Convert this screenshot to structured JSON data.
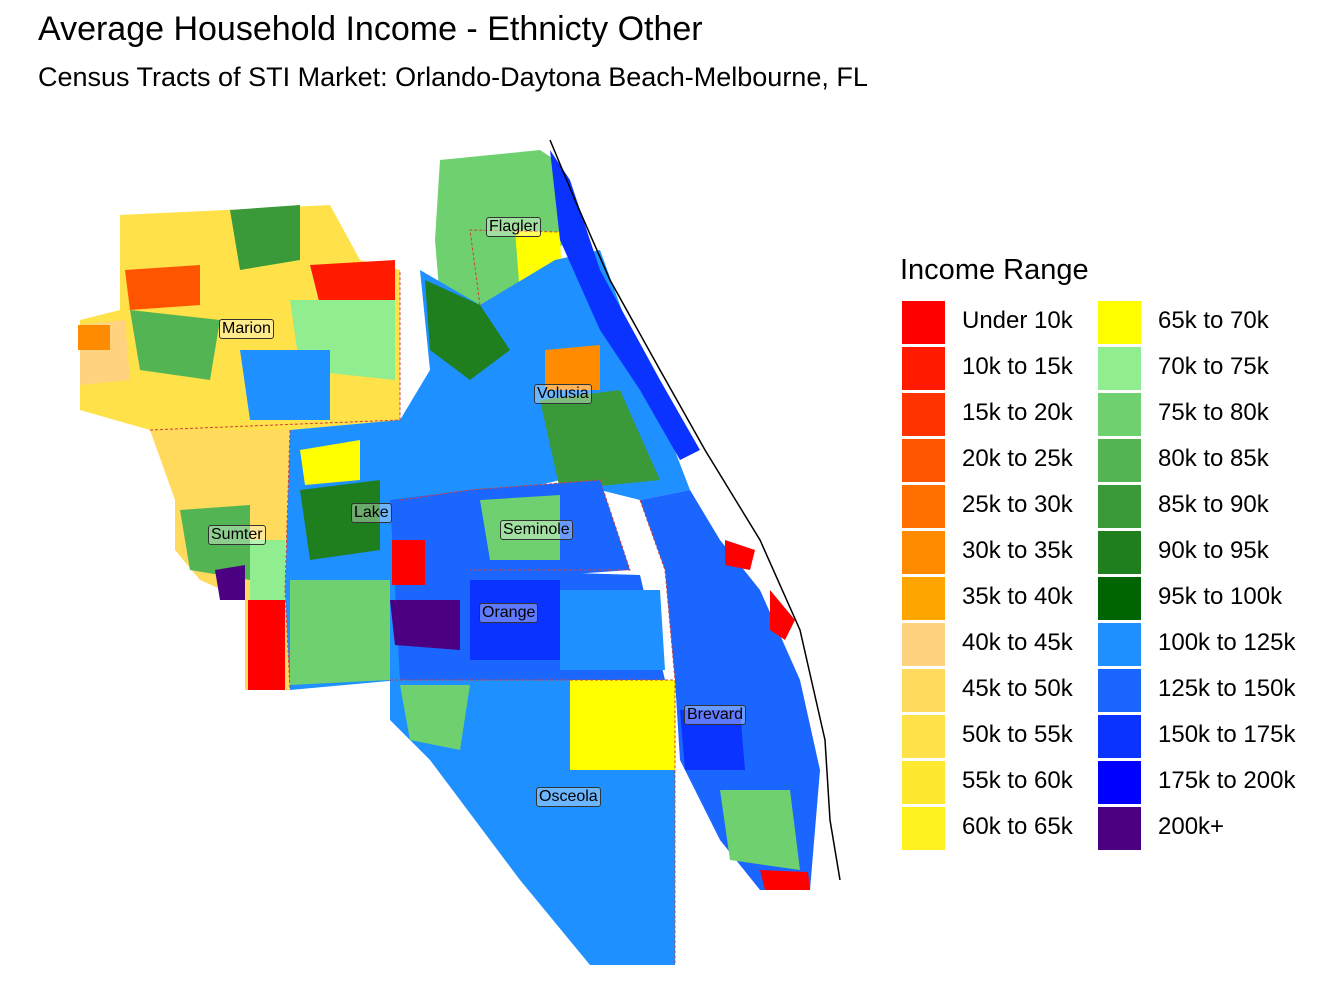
{
  "title": "Average Household Income - Ethnicty Other",
  "subtitle": "Census Tracts of STI Market: Orlando-Daytona Beach-Melbourne, FL",
  "legend": {
    "title": "Income Range",
    "items": [
      {
        "label": "Under 10k",
        "color": "#FF0000"
      },
      {
        "label": "10k to 15k",
        "color": "#FF1A00"
      },
      {
        "label": "15k to 20k",
        "color": "#FF3300"
      },
      {
        "label": "20k to 25k",
        "color": "#FF5500"
      },
      {
        "label": "25k to 30k",
        "color": "#FF7000"
      },
      {
        "label": "30k to 35k",
        "color": "#FF8C00"
      },
      {
        "label": "35k to 40k",
        "color": "#FFA500"
      },
      {
        "label": "40k to 45k",
        "color": "#FFD27F"
      },
      {
        "label": "45k to 50k",
        "color": "#FFDA5C"
      },
      {
        "label": "50k to 55k",
        "color": "#FFE14A"
      },
      {
        "label": "55k to 60k",
        "color": "#FFE830"
      },
      {
        "label": "60k to 65k",
        "color": "#FFF020"
      },
      {
        "label": "65k to 70k",
        "color": "#FFFF00"
      },
      {
        "label": "70k to 75k",
        "color": "#90EE90"
      },
      {
        "label": "75k to 80k",
        "color": "#6FD06F"
      },
      {
        "label": "80k to 85k",
        "color": "#52B452"
      },
      {
        "label": "85k to 90k",
        "color": "#3A9A3A"
      },
      {
        "label": "90k to 95k",
        "color": "#1F7F1F"
      },
      {
        "label": "95k to 100k",
        "color": "#006400"
      },
      {
        "label": "100k to 125k",
        "color": "#1E90FF"
      },
      {
        "label": "125k to 150k",
        "color": "#1A66FF"
      },
      {
        "label": "150k to 175k",
        "color": "#0A33FF"
      },
      {
        "label": "175k to 200k",
        "color": "#0000FF"
      },
      {
        "label": "200k+",
        "color": "#4B0082"
      }
    ]
  },
  "counties": [
    {
      "name": "Flagler"
    },
    {
      "name": "Marion"
    },
    {
      "name": "Volusia"
    },
    {
      "name": "Lake"
    },
    {
      "name": "Seminole"
    },
    {
      "name": "Sumter"
    },
    {
      "name": "Orange"
    },
    {
      "name": "Brevard"
    },
    {
      "name": "Osceola"
    }
  ]
}
